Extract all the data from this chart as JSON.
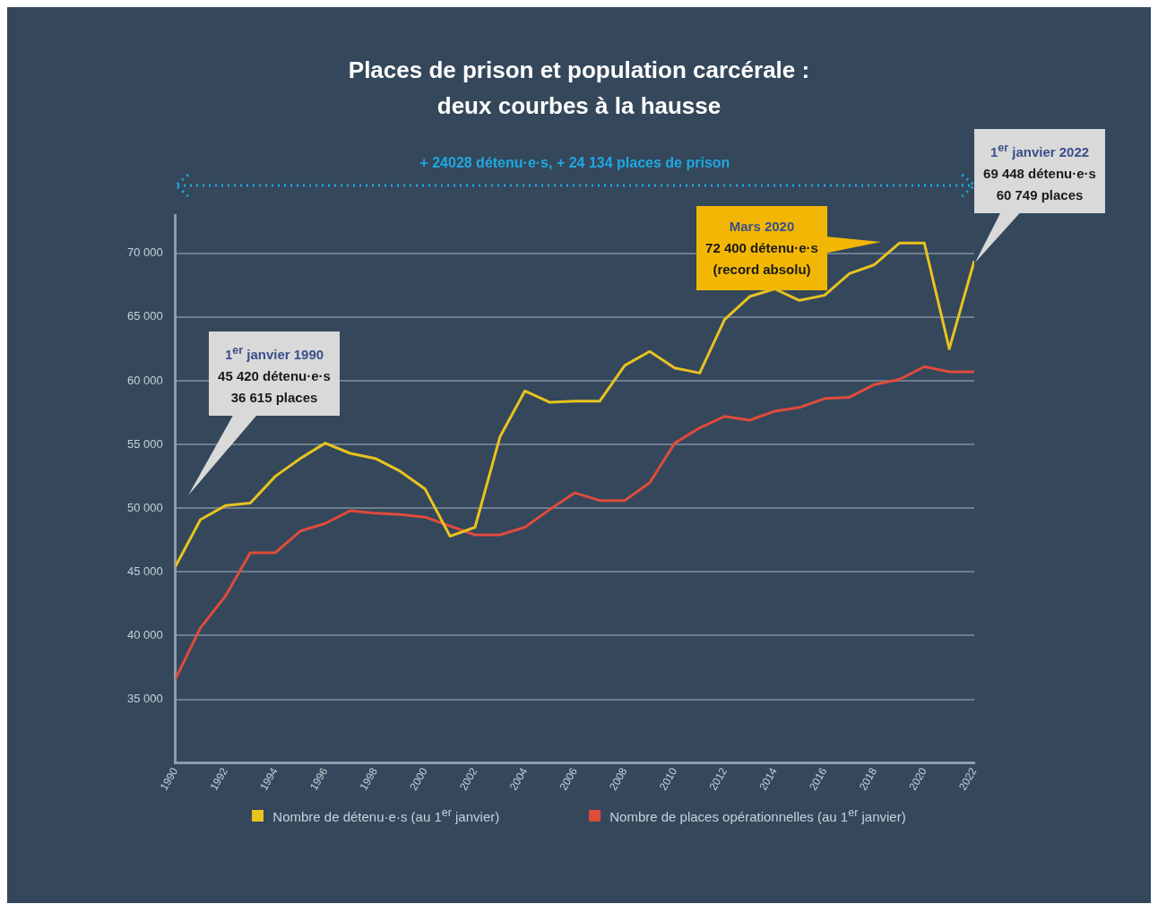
{
  "chart_data": {
    "type": "line",
    "title": "Places de prison et population carcérale : deux courbes à la hausse",
    "x": [
      1990,
      1991,
      1992,
      1993,
      1994,
      1995,
      1996,
      1997,
      1998,
      1999,
      2000,
      2001,
      2002,
      2003,
      2004,
      2005,
      2006,
      2007,
      2008,
      2009,
      2010,
      2011,
      2012,
      2013,
      2014,
      2015,
      2016,
      2017,
      2018,
      2019,
      2020,
      2021,
      2022
    ],
    "series": [
      {
        "name": "Nombre de détenu·e·s (au 1$^{er}$ janvier)",
        "color": "#e8c31f",
        "values": [
          45420,
          49100,
          50200,
          50400,
          52500,
          53900,
          55100,
          54300,
          53900,
          52900,
          51500,
          47800,
          48500,
          55600,
          59200,
          58300,
          58400,
          58400,
          61200,
          62300,
          61000,
          60600,
          64800,
          66600,
          67200,
          66300,
          66700,
          68400,
          69100,
          70800,
          70800,
          62500,
          69400
        ]
      },
      {
        "name": "Nombre de places opérationnelles (au 1$^{er}$ janvier)",
        "color": "#e04b3a",
        "values": [
          36600,
          40600,
          43100,
          46500,
          46500,
          48200,
          48800,
          49800,
          49600,
          49500,
          49300,
          48600,
          47900,
          47900,
          48500,
          49900,
          51200,
          50600,
          50600,
          52000,
          55100,
          56300,
          57200,
          56900,
          57600,
          57900,
          58600,
          58700,
          59700,
          60100,
          61100,
          60700,
          60700
        ]
      }
    ],
    "xlim": [
      1990,
      2022
    ],
    "xticks": [
      1990,
      1992,
      1994,
      1996,
      1998,
      2000,
      2002,
      2004,
      2006,
      2008,
      2010,
      2012,
      2014,
      2016,
      2018,
      2020,
      2022
    ],
    "ylim": [
      30000,
      73000
    ],
    "yticks": [
      {
        "value": 35000,
        "label": "35 000"
      },
      {
        "value": 40000,
        "label": "40 000"
      },
      {
        "value": 45000,
        "label": "45 000"
      },
      {
        "value": 50000,
        "label": "50 000"
      },
      {
        "value": 55000,
        "label": "55 000"
      },
      {
        "value": 60000,
        "label": "60 000"
      },
      {
        "value": 65000,
        "label": "65 000"
      },
      {
        "value": 70000,
        "label": "70 000"
      }
    ],
    "grid": "y",
    "legend": "bottom",
    "marker": "none",
    "line_style": "solid",
    "annotations": [
      "1$^{er}$ janvier 1990\n45 420 détenu·e·s\n36 615 places",
      "+ 24028 détenu·e·s, + 24 134 places de prison",
      "Mars 2020\n72 400 détenu·e·s\n(record absolu)",
      "1$^{er}$ janvier 2022\n69 448 détenu·e·s\n60 749 places"
    ]
  }
}
